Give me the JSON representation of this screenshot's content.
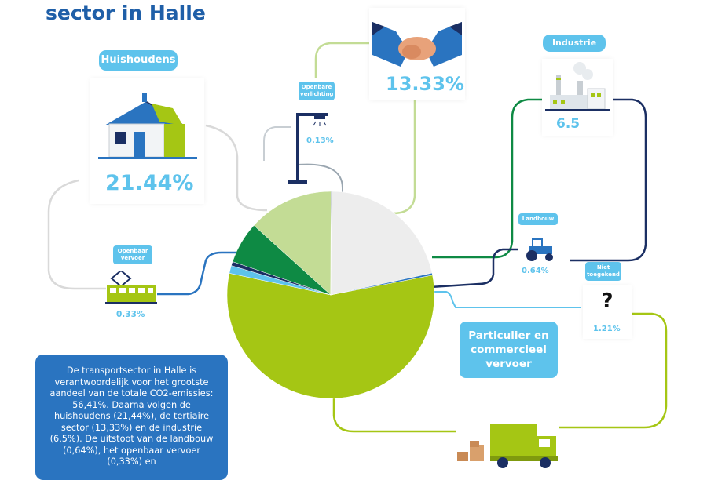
{
  "title_line": "sector in Halle",
  "labels": {
    "huishoudens": "Huishoudens",
    "openbare_verlichting": "Openbare verlichting",
    "industrie": "Industrie",
    "landbouw": "Landbouw",
    "openbaar_vervoer": "Openbaar vervoer",
    "niet_toegekend": "Niet toegekend",
    "particulier": "Particulier en commercieel vervoer",
    "question_mark": "?"
  },
  "values_text": {
    "huishoudens": "21.44%",
    "openbare_verlichting": "0.13%",
    "tertiair": "13.33%",
    "industrie": "6.5",
    "landbouw": "0.64%",
    "openbaar_vervoer": "0.33%",
    "niet_toegekend": "1.21%"
  },
  "info_text": "De transportsector in Halle is verantwoordelijk voor het grootste aandeel van de totale CO2-emissies: 56,41%. Daarna volgen de huishoudens (21,44%), de tertiaire sector (13,33%) en de industrie (6,5%). De uitstoot van de landbouw (0,64%), het openbaar vervoer (0,33%) en",
  "colors": {
    "accent": "#5ec3ec",
    "blue_dark": "#2a74c0",
    "title": "#1f5fa8",
    "transport": "#a5c614",
    "huishoudens": "#ededed",
    "tertiair": "#c3dc95",
    "industrie": "#0e8a44",
    "landbouw": "#1b2f63",
    "openbaar_vervoer": "#2a74c0",
    "niet_toegekend": "#5ec3ec"
  },
  "chart_data": {
    "type": "pie",
    "slices": [
      {
        "label": "Particulier en commercieel vervoer",
        "value": 56.41,
        "color": "#a5c614"
      },
      {
        "label": "Niet toegekend",
        "value": 1.21,
        "color": "#5ec3ec"
      },
      {
        "label": "Landbouw",
        "value": 0.64,
        "color": "#1b2f63"
      },
      {
        "label": "Industrie",
        "value": 6.5,
        "color": "#0e8a44"
      },
      {
        "label": "",
        "value": 13.33,
        "color": "#c3dc95"
      },
      {
        "label": "Openbare verlichting",
        "value": 0.13,
        "color": "#9aa6b0"
      },
      {
        "label": "Huishoudens",
        "value": 21.44,
        "color": "#ededed"
      },
      {
        "label": "Openbaar vervoer",
        "value": 0.33,
        "color": "#2a74c0"
      }
    ]
  }
}
